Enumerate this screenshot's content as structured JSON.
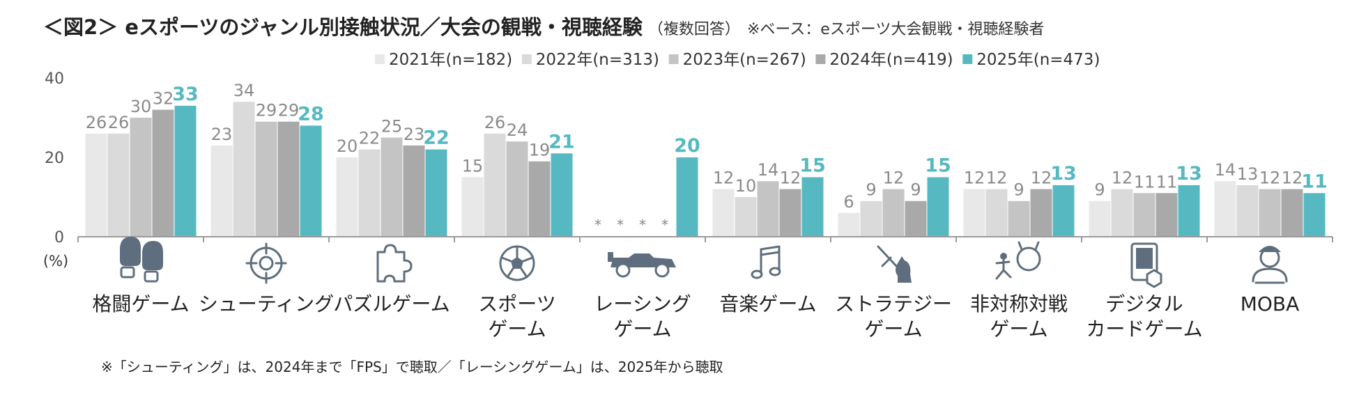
{
  "header": {
    "title": "＜図2＞ eスポーツのジャンル別接触状況／大会の観戦・視聴経験",
    "subtitle": "（複数回答）",
    "base_note": "※ベース：eスポーツ大会観戦・視聴経験者"
  },
  "footnote": "※「シューティング」は、2024年まで「FPS」で聴取／「レーシングゲーム」は、2025年から聴取",
  "chart_data": {
    "type": "bar",
    "ylim": [
      0,
      40
    ],
    "yticks": [
      "0",
      "20",
      "40"
    ],
    "yunit": "(%)",
    "missing_marker": "*",
    "legend_position": "top-right",
    "grid": false,
    "categories": [
      [
        "格闘ゲーム"
      ],
      [
        "シューティング"
      ],
      [
        "パズルゲーム"
      ],
      [
        "スポーツ",
        "ゲーム"
      ],
      [
        "レーシング",
        "ゲーム"
      ],
      [
        "音楽ゲーム"
      ],
      [
        "ストラテジー",
        "ゲーム"
      ],
      [
        "非対称対戦",
        "ゲーム"
      ],
      [
        "デジタル",
        "カードゲーム"
      ],
      [
        "MOBA"
      ]
    ],
    "category_icons": [
      "boxing-gloves-icon",
      "crosshair-icon",
      "puzzle-icon",
      "soccer-ball-icon",
      "race-car-icon",
      "music-note-icon",
      "sword-shield-knight-icon",
      "oni-runner-icon",
      "card-tablet-icon",
      "soldier-icon"
    ],
    "series": [
      {
        "name": "2021年(n=182)",
        "color": "#e8e8e8",
        "values": [
          26,
          23,
          20,
          15,
          null,
          12,
          6,
          12,
          9,
          14
        ]
      },
      {
        "name": "2022年(n=313)",
        "color": "#dadada",
        "values": [
          26,
          34,
          22,
          26,
          null,
          10,
          9,
          12,
          12,
          13
        ]
      },
      {
        "name": "2023年(n=267)",
        "color": "#c4c4c4",
        "values": [
          30,
          29,
          25,
          24,
          null,
          14,
          12,
          9,
          11,
          12
        ]
      },
      {
        "name": "2024年(n=419)",
        "color": "#a9a9a9",
        "values": [
          32,
          29,
          23,
          19,
          null,
          12,
          9,
          12,
          11,
          12
        ]
      },
      {
        "name": "2025年(n=473)",
        "color": "#56b9c2",
        "values": [
          33,
          28,
          22,
          21,
          20,
          15,
          15,
          13,
          13,
          11
        ]
      }
    ],
    "colors": {
      "axis": "#9a9a9a",
      "label_gray": "#8a8a8a",
      "accent": "#56b9c2",
      "icon": "#5e6e7e"
    }
  }
}
